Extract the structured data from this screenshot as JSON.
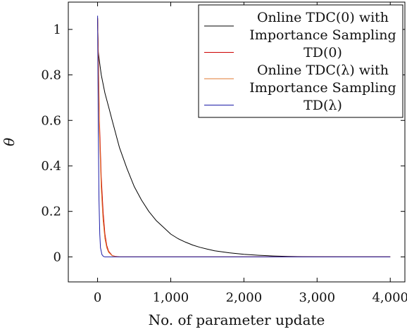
{
  "chart_data": {
    "type": "line",
    "title": "",
    "xlabel": "No. of parameter update",
    "ylabel": "θ",
    "xlim": [
      -400,
      4200
    ],
    "ylim": [
      -0.11,
      1.12
    ],
    "xticks": [
      0,
      1000,
      2000,
      3000,
      4000
    ],
    "xtick_labels": [
      "0",
      "1,000",
      "2,000",
      "3,000",
      "4,000"
    ],
    "yticks": [
      0,
      0.2,
      0.4,
      0.6,
      0.8,
      1
    ],
    "ytick_labels": [
      "0",
      "0.2",
      "0.4",
      "0.6",
      "0.8",
      "1"
    ],
    "grid": false,
    "legend_position": "top-right",
    "series": [
      {
        "name": "Online TDC(0) with Importance Sampling",
        "color": "#000000",
        "x": [
          0,
          10,
          25,
          50,
          100,
          150,
          200,
          300,
          400,
          500,
          600,
          700,
          800,
          900,
          1000,
          1100,
          1200,
          1300,
          1400,
          1500,
          1600,
          1800,
          2000,
          2200,
          2400,
          2600,
          2800,
          3000,
          3500,
          4000
        ],
        "y": [
          1.05,
          0.9,
          0.86,
          0.8,
          0.72,
          0.66,
          0.6,
          0.48,
          0.39,
          0.31,
          0.25,
          0.2,
          0.16,
          0.13,
          0.1,
          0.08,
          0.065,
          0.052,
          0.042,
          0.034,
          0.027,
          0.018,
          0.011,
          0.007,
          0.004,
          0.002,
          0.001,
          0.0005,
          0.0,
          0.0
        ]
      },
      {
        "name": "TD(0)",
        "color": "#cc0000",
        "x": [
          0,
          10,
          25,
          50,
          75,
          100,
          125,
          150,
          200,
          250,
          300,
          400,
          4000
        ],
        "y": [
          1.05,
          0.9,
          0.6,
          0.35,
          0.2,
          0.1,
          0.05,
          0.025,
          0.006,
          0.002,
          0.0,
          0.0,
          0.0
        ]
      },
      {
        "name": "Online TDC(λ) with Importance Sampling",
        "color": "#e07a30",
        "x": [
          0,
          10,
          25,
          50,
          75,
          100,
          125,
          150,
          200,
          250,
          300,
          400,
          4000
        ],
        "y": [
          1.05,
          0.85,
          0.55,
          0.3,
          0.16,
          0.08,
          0.04,
          0.02,
          0.005,
          0.001,
          0.0,
          0.0,
          0.0
        ]
      },
      {
        "name": "TD(λ)",
        "color": "#1a1aa6",
        "x": [
          0,
          5,
          10,
          20,
          30,
          40,
          60,
          80,
          100,
          4000
        ],
        "y": [
          1.06,
          0.8,
          0.55,
          0.25,
          0.1,
          0.04,
          0.01,
          0.002,
          0.0,
          0.0
        ]
      }
    ]
  },
  "legend": {
    "entries": [
      {
        "lines": [
          "Online TDC(0) with",
          "Importance Sampling"
        ],
        "color": "#000000"
      },
      {
        "lines": [
          "TD(0)"
        ],
        "color": "#cc0000"
      },
      {
        "lines": [
          "Online TDC(λ) with",
          "Importance Sampling"
        ],
        "color": "#e07a30"
      },
      {
        "lines": [
          "TD(λ)"
        ],
        "color": "#1a1aa6"
      }
    ]
  }
}
